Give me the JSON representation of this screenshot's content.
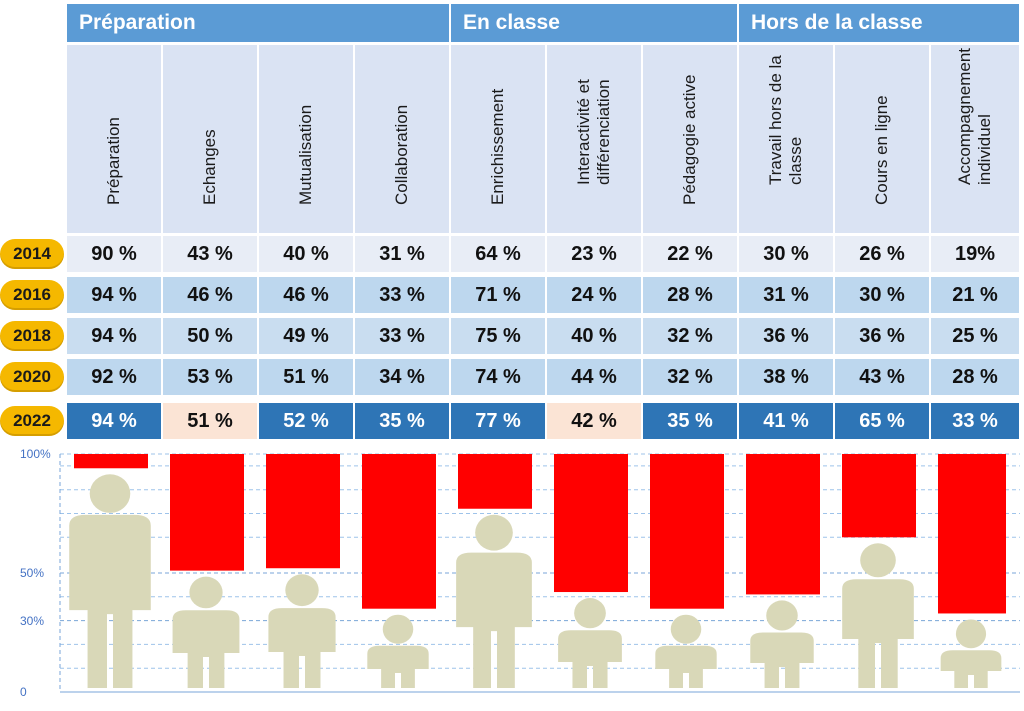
{
  "groups": [
    "Préparation",
    "En classe",
    "Hors de la classe"
  ],
  "columns": [
    "Préparation",
    "Echanges",
    "Mutualisation",
    "Collaboration",
    "Enrichissement",
    "Interactivité et\ndifférenciation",
    "Pédagogie active",
    "Travail hors de la\nclasse",
    "Cours en ligne",
    "Accompagnement\nindividuel"
  ],
  "years": [
    "2014",
    "2016",
    "2018",
    "2020",
    "2022"
  ],
  "table": [
    [
      "90 %",
      "43 %",
      "40 %",
      "31 %",
      "64 %",
      "23 %",
      "22 %",
      "30 %",
      "26 %",
      "19%"
    ],
    [
      "94 %",
      "46 %",
      "46 %",
      "33 %",
      "71 %",
      "24 %",
      "28 %",
      "31 %",
      "30 %",
      "21 %"
    ],
    [
      "94 %",
      "50 %",
      "49 %",
      "33 %",
      "75 %",
      "40 %",
      "32 %",
      "36 %",
      "36 %",
      "25 %"
    ],
    [
      "92 %",
      "53 %",
      "51 %",
      "34 %",
      "74 %",
      "44 %",
      "32 %",
      "38 %",
      "43 %",
      "28 %"
    ],
    [
      "94 %",
      "51 %",
      "52 %",
      "35 %",
      "77 %",
      "42 %",
      "35 %",
      "41 %",
      "65 %",
      "33 %"
    ]
  ],
  "highlight_2022_light": [
    1,
    5
  ],
  "y_axis_labels": [
    "100%",
    "50%",
    "30%",
    "0"
  ],
  "colors": {
    "group_header": "#5b9bd5",
    "column_header": "#dae3f3",
    "row_2014": "#e8edf6",
    "row_even": "#bdd7ee",
    "row_odd": "#c9ddf0",
    "row_2022": "#2e75b6",
    "row_2022_light": "#fbe4d5",
    "year_badge": "#f5b800",
    "bar": "#ff0000",
    "figure": "#d9d8b8"
  },
  "chart_data": {
    "type": "bar",
    "categories": [
      "Préparation",
      "Echanges",
      "Mutualisation",
      "Collaboration",
      "Enrichissement",
      "Interactivité et différenciation",
      "Pédagogie active",
      "Travail hors de la classe",
      "Cours en ligne",
      "Accompagnement individuel"
    ],
    "series": [
      {
        "values": [
          94,
          51,
          52,
          35,
          77,
          42,
          35,
          41,
          65,
          33
        ]
      }
    ],
    "ylim": [
      0,
      100
    ],
    "yticks": [
      0,
      30,
      50,
      100
    ],
    "grid": true
  }
}
